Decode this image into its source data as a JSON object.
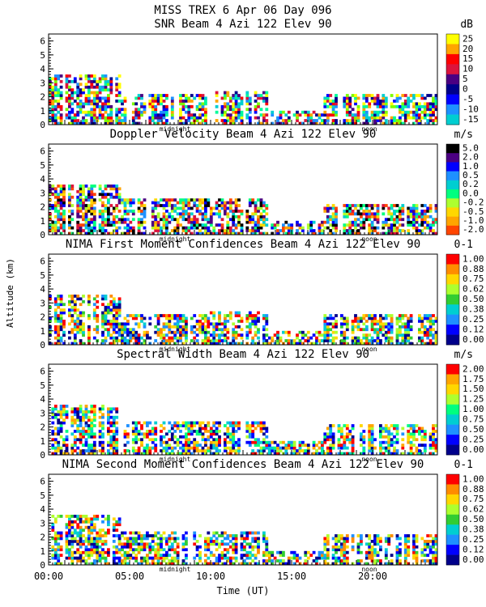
{
  "header": {
    "title_line1": "MISS TREX    6 Apr 06 Day 096",
    "ylabel": "Altitude (km)",
    "xlabel": "Time (UT)",
    "x_ticks": [
      "00:00",
      "05:00",
      "10:00",
      "15:00",
      "20:00"
    ],
    "midnight_label": "midnight",
    "noon_label": "noon"
  },
  "colors": {
    "scale10": [
      "#ffff00",
      "#ffa500",
      "#ff0000",
      "#dc143c",
      "#4b0082",
      "#00008b",
      "#0000ff",
      "#1e90ff",
      "#00ced1",
      "#00fa9a",
      "#7cfc00"
    ],
    "scale9": [
      "#ff0000",
      "#ffa500",
      "#ffd700",
      "#adff2f",
      "#00ff7f",
      "#00ced1",
      "#1e90ff",
      "#0000ff",
      "#00008b"
    ],
    "scale_vel": [
      "#000000",
      "#4b0082",
      "#0000ff",
      "#1e90ff",
      "#00ced1",
      "#00ff7f",
      "#adff2f",
      "#ffd700",
      "#ffa500",
      "#ff4500",
      "#dc143c"
    ],
    "scale_conf": [
      "#ff0000",
      "#ff8c00",
      "#ffd700",
      "#adff2f",
      "#32cd32",
      "#00ced1",
      "#1e90ff",
      "#0000ff",
      "#00008b"
    ]
  },
  "chart_data": [
    {
      "type": "heatmap",
      "title": "SNR Beam 4 Azi 122 Elev 90",
      "unit": "dB",
      "colorbar_labels": [
        "25",
        "20",
        "15",
        "10",
        "5",
        "0",
        "-5",
        "-10",
        "-15"
      ],
      "xlabel": "Time (UT)",
      "ylabel": "Altitude (km)",
      "xlim": [
        0,
        24
      ],
      "ylim": [
        0,
        6.5
      ],
      "y_ticks": [
        "0",
        "1",
        "2",
        "3",
        "4",
        "5",
        "6"
      ],
      "color_key": "scale10",
      "coverage": [
        {
          "t0": 0.0,
          "t1": 4.5,
          "top": 3.6
        },
        {
          "t0": 4.5,
          "t1": 10.0,
          "top": 2.0
        },
        {
          "t0": 10.0,
          "t1": 13.5,
          "top": 2.4
        },
        {
          "t0": 13.5,
          "t1": 17.0,
          "top": 1.0
        },
        {
          "t0": 17.0,
          "t1": 24.0,
          "top": 2.0
        }
      ]
    },
    {
      "type": "heatmap",
      "title": "Doppler Velocity Beam 4 Azi 122 Elev 90",
      "unit": "m/s",
      "colorbar_labels": [
        "5.0",
        "2.0",
        "1.0",
        "0.5",
        "0.2",
        "0.0",
        "-0.2",
        "-0.5",
        "-1.0",
        "-2.0"
      ],
      "xlabel": "Time (UT)",
      "ylabel": "Altitude (km)",
      "xlim": [
        0,
        24
      ],
      "ylim": [
        0,
        6.5
      ],
      "y_ticks": [
        "0",
        "1",
        "2",
        "3",
        "4",
        "5",
        "6"
      ],
      "color_key": "scale_vel",
      "coverage": [
        {
          "t0": 0.0,
          "t1": 4.5,
          "top": 3.6
        },
        {
          "t0": 4.5,
          "t1": 10.0,
          "top": 2.6
        },
        {
          "t0": 10.0,
          "t1": 13.5,
          "top": 2.6
        },
        {
          "t0": 13.5,
          "t1": 17.0,
          "top": 1.0
        },
        {
          "t0": 17.0,
          "t1": 24.0,
          "top": 2.0
        }
      ]
    },
    {
      "type": "heatmap",
      "title": "NIMA First Moment Confidences Beam 4 Azi 122 Elev 90",
      "unit": "0-1",
      "colorbar_labels": [
        "1.00",
        "0.88",
        "0.75",
        "0.62",
        "0.50",
        "0.38",
        "0.25",
        "0.12",
        "0.00"
      ],
      "xlabel": "Time (UT)",
      "ylabel": "Altitude (km)",
      "xlim": [
        0,
        24
      ],
      "ylim": [
        0,
        6.5
      ],
      "y_ticks": [
        "0",
        "1",
        "2",
        "3",
        "4",
        "5",
        "6"
      ],
      "color_key": "scale_conf",
      "coverage": [
        {
          "t0": 0.0,
          "t1": 4.5,
          "top": 3.6
        },
        {
          "t0": 4.5,
          "t1": 10.0,
          "top": 2.0
        },
        {
          "t0": 10.0,
          "t1": 13.5,
          "top": 2.4
        },
        {
          "t0": 13.5,
          "t1": 17.0,
          "top": 1.0
        },
        {
          "t0": 17.0,
          "t1": 24.0,
          "top": 2.0
        }
      ]
    },
    {
      "type": "heatmap",
      "title": "Spectral Width Beam 4 Azi 122 Elev 90",
      "unit": "m/s",
      "colorbar_labels": [
        "2.00",
        "1.75",
        "1.50",
        "1.25",
        "1.00",
        "0.75",
        "0.50",
        "0.25",
        "0.00"
      ],
      "xlabel": "Time (UT)",
      "ylabel": "Altitude (km)",
      "xlim": [
        0,
        24
      ],
      "ylim": [
        0,
        6.5
      ],
      "y_ticks": [
        "0",
        "1",
        "2",
        "3",
        "4",
        "5",
        "6"
      ],
      "color_key": "scale9",
      "coverage": [
        {
          "t0": 0.0,
          "t1": 4.5,
          "top": 3.6
        },
        {
          "t0": 4.5,
          "t1": 10.0,
          "top": 2.2
        },
        {
          "t0": 10.0,
          "t1": 13.5,
          "top": 2.4
        },
        {
          "t0": 13.5,
          "t1": 17.0,
          "top": 1.0
        },
        {
          "t0": 17.0,
          "t1": 24.0,
          "top": 2.0
        }
      ]
    },
    {
      "type": "heatmap",
      "title": "NIMA Second Moment Confidences Beam 4 Azi 122 Elev 90",
      "unit": "0-1",
      "colorbar_labels": [
        "1.00",
        "0.88",
        "0.75",
        "0.62",
        "0.50",
        "0.38",
        "0.25",
        "0.12",
        "0.00"
      ],
      "xlabel": "Time (UT)",
      "ylabel": "Altitude (km)",
      "xlim": [
        0,
        24
      ],
      "ylim": [
        0,
        6.5
      ],
      "y_ticks": [
        "0",
        "1",
        "2",
        "3",
        "4",
        "5",
        "6"
      ],
      "color_key": "scale_conf",
      "coverage": [
        {
          "t0": 0.0,
          "t1": 4.5,
          "top": 3.6
        },
        {
          "t0": 4.5,
          "t1": 10.0,
          "top": 2.2
        },
        {
          "t0": 10.0,
          "t1": 13.5,
          "top": 2.4
        },
        {
          "t0": 13.5,
          "t1": 17.0,
          "top": 1.0
        },
        {
          "t0": 17.0,
          "t1": 24.0,
          "top": 2.0
        }
      ]
    }
  ]
}
